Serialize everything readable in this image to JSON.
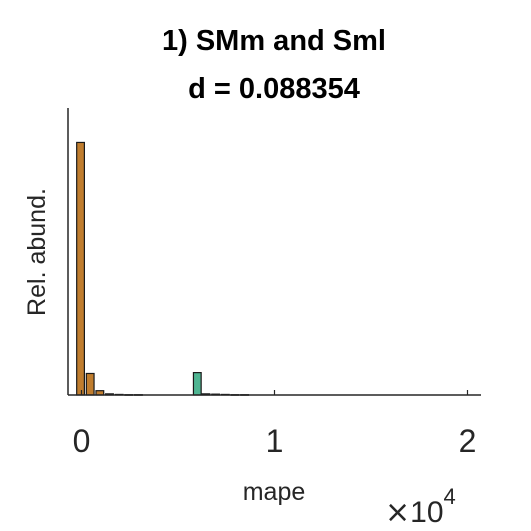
{
  "chart_data": {
    "type": "bar",
    "title": [
      "1) SMm and Sml",
      "d = 0.088354"
    ],
    "xlabel": "mape",
    "ylabel": "Rel. abund.",
    "xlim": [
      -700,
      20700
    ],
    "ylim": [
      0,
      1.0
    ],
    "x_ticks": [
      {
        "value": 0,
        "label": "0"
      },
      {
        "value": 10000,
        "label": "1"
      },
      {
        "value": 20000,
        "label": "2"
      }
    ],
    "x_multiplier": {
      "times": "×",
      "base": "10",
      "exponent": "4"
    },
    "bin_width": 400,
    "series": [
      {
        "color": "#c07d2e",
        "bins": [
          {
            "start": -250,
            "value": 0.88
          },
          {
            "start": 250,
            "value": 0.075
          },
          {
            "start": 750,
            "value": 0.015
          },
          {
            "start": 1250,
            "value": 0.004
          },
          {
            "start": 1750,
            "value": 0.002
          },
          {
            "start": 2250,
            "value": 0.001
          },
          {
            "start": 2750,
            "value": 0.001
          }
        ]
      },
      {
        "color": "#4fb592",
        "bins": [
          {
            "start": 5800,
            "value": 0.078
          },
          {
            "start": 6250,
            "value": 0.004
          },
          {
            "start": 6750,
            "value": 0.003
          },
          {
            "start": 7250,
            "value": 0.002
          },
          {
            "start": 7750,
            "value": 0.001
          },
          {
            "start": 8250,
            "value": 0.001
          }
        ]
      }
    ]
  }
}
